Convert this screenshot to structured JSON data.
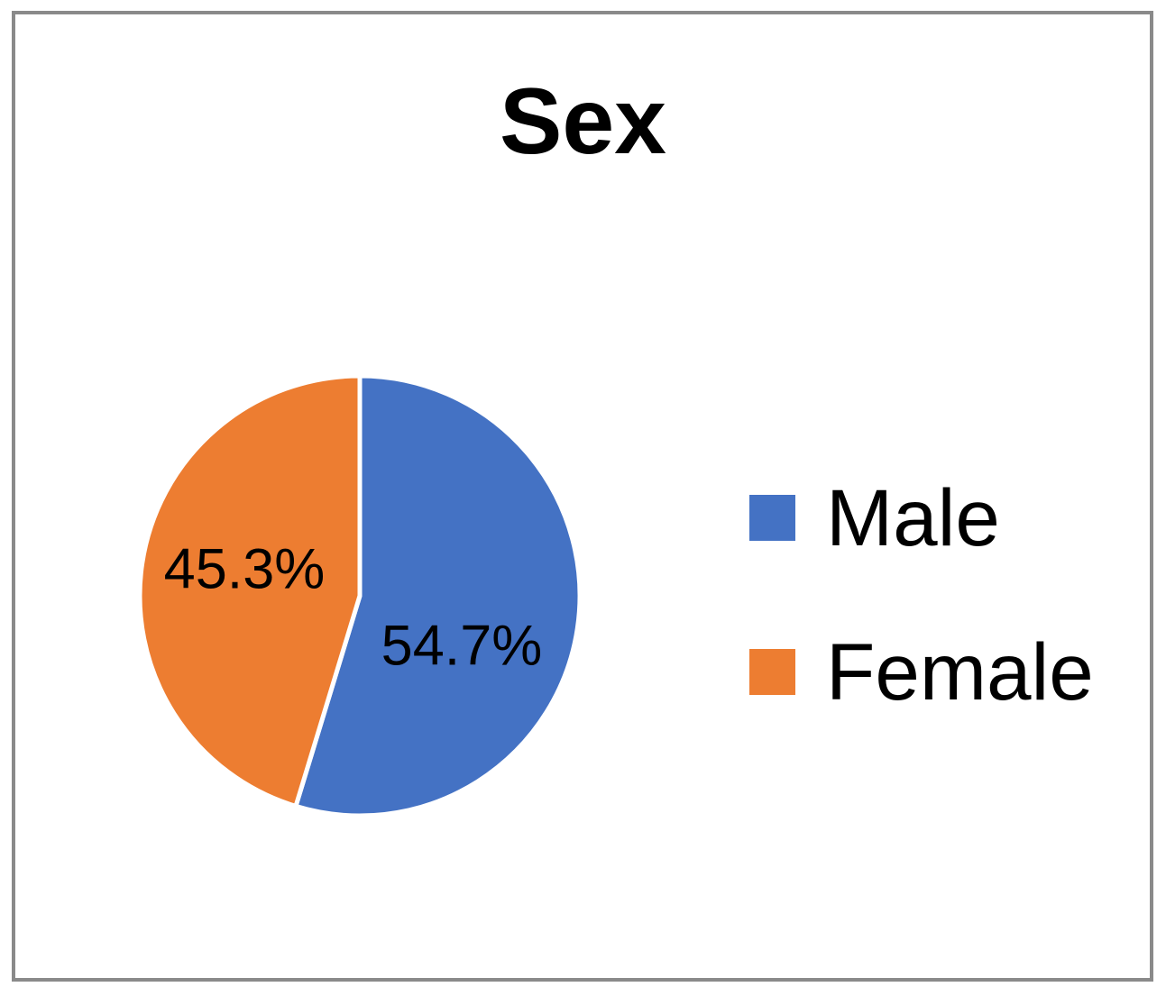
{
  "window": {
    "background": "#ffffff",
    "frame_border_color": "#8a8a8a"
  },
  "chart_data": {
    "type": "pie",
    "title": "Sex",
    "categories": [
      "Male",
      "Female"
    ],
    "values": [
      54.7,
      45.3
    ],
    "slice_labels": [
      "54.7%",
      "45.3%"
    ],
    "colors": [
      "#4472c4",
      "#ed7d31"
    ],
    "slice_border_color": "#ffffff",
    "start_angle_deg": 0,
    "direction": "clockwise",
    "legend_position": "right",
    "data_label_color": "#000000",
    "title_color": "#000000"
  },
  "legend": {
    "items": [
      {
        "label": "Male"
      },
      {
        "label": "Female"
      }
    ]
  }
}
